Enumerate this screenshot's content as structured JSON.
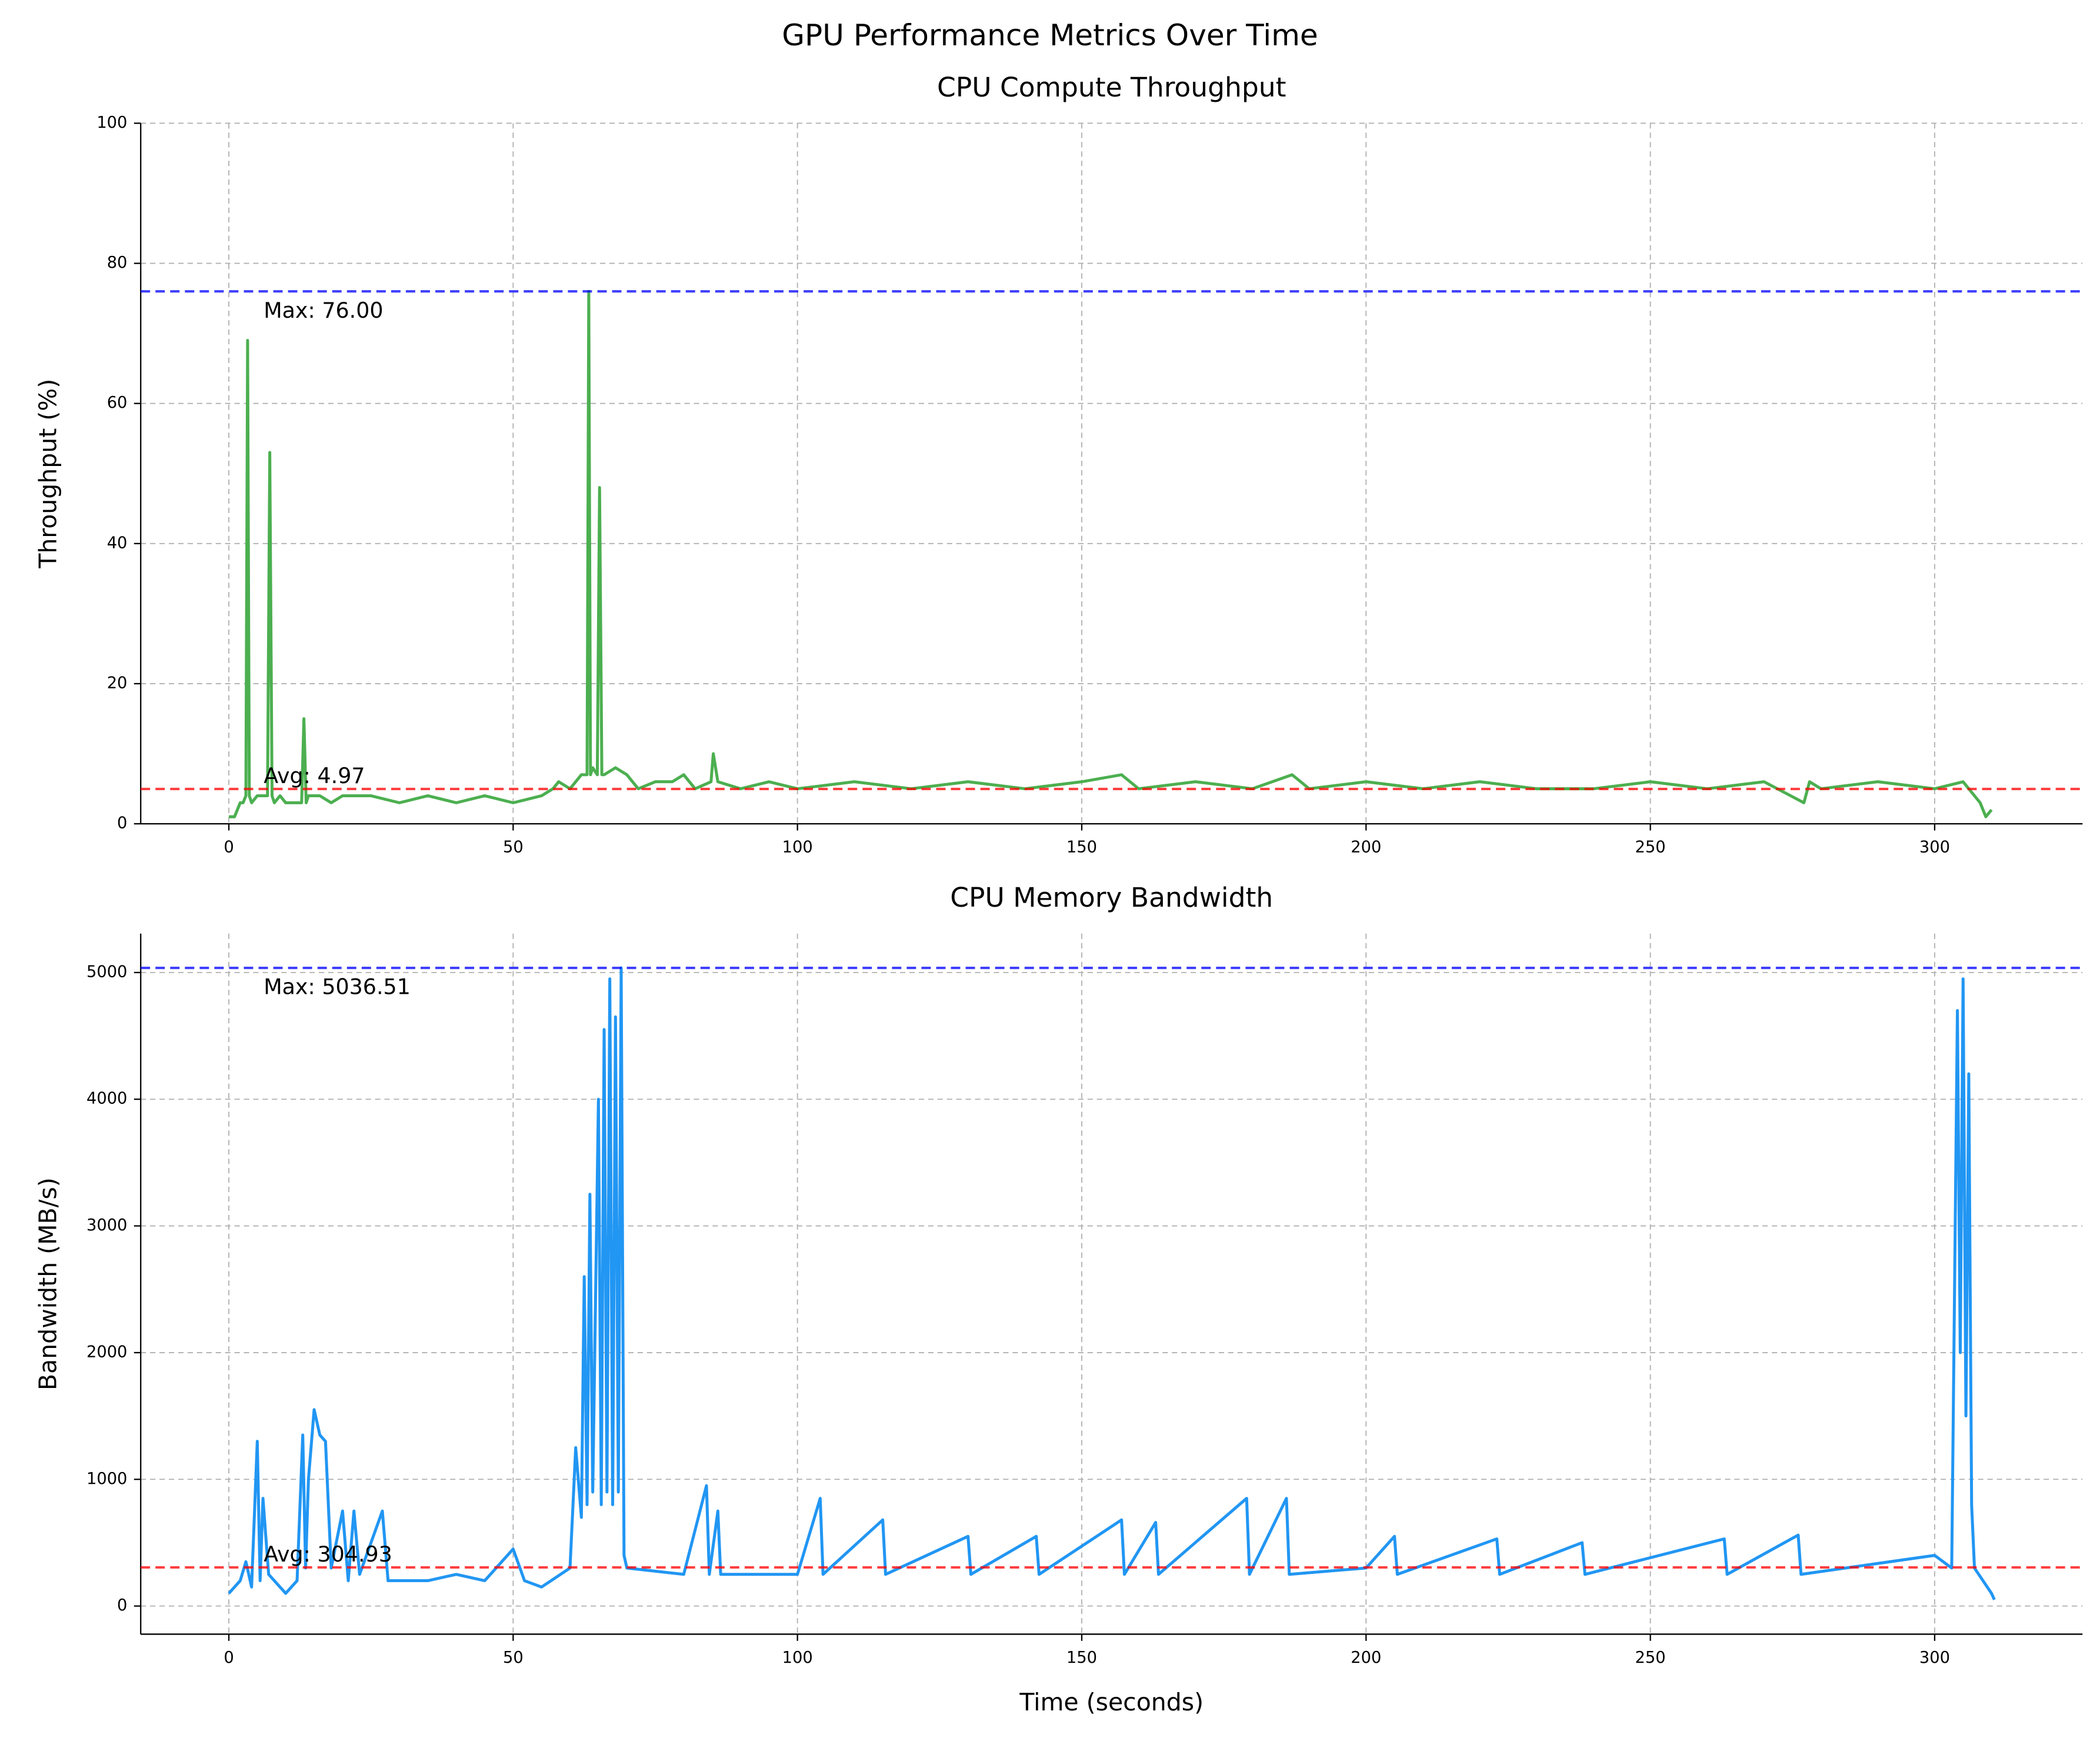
{
  "title": "GPU Performance Metrics Over Time",
  "chart_data": [
    {
      "type": "line",
      "title": "CPU Compute Throughput",
      "ylabel": "Throughput (%)",
      "color": "#4caf50",
      "grid": true,
      "xlim": [
        -15.5,
        326
      ],
      "xticks": [
        0,
        50,
        100,
        150,
        200,
        250,
        300
      ],
      "ylim": [
        0,
        100
      ],
      "yticks": [
        0,
        20,
        40,
        60,
        80,
        100
      ],
      "x": [
        0,
        1,
        2,
        2.5,
        3,
        3.3,
        3.6,
        4,
        5,
        6,
        6.8,
        7.2,
        7.6,
        8,
        9,
        10,
        12,
        12.8,
        13.2,
        13.6,
        14,
        16,
        18,
        20,
        25,
        30,
        35,
        40,
        45,
        50,
        55,
        57,
        58,
        60,
        62,
        63,
        63.3,
        63.6,
        64,
        64.8,
        65.2,
        65.6,
        66,
        68,
        70,
        72,
        75,
        78,
        80,
        82,
        84.8,
        85.2,
        86,
        90,
        95,
        100,
        110,
        120,
        130,
        140,
        150,
        157,
        160,
        170,
        180,
        187,
        190,
        200,
        210,
        220,
        230,
        240,
        250,
        260,
        270,
        277,
        278,
        280,
        290,
        300,
        305,
        307,
        308,
        309,
        310
      ],
      "values": [
        1,
        1,
        3,
        3,
        4,
        69,
        4,
        3,
        4,
        4,
        4,
        53,
        4,
        3,
        4,
        3,
        3,
        3,
        15,
        3,
        4,
        4,
        3,
        4,
        4,
        3,
        4,
        3,
        4,
        3,
        4,
        5,
        6,
        5,
        7,
        7,
        76,
        7,
        8,
        7,
        48,
        7,
        7,
        8,
        7,
        5,
        6,
        6,
        7,
        5,
        6,
        10,
        6,
        5,
        6,
        5,
        6,
        5,
        6,
        5,
        6,
        7,
        5,
        6,
        5,
        7,
        5,
        6,
        5,
        6,
        5,
        5,
        6,
        5,
        6,
        3,
        6,
        5,
        6,
        5,
        6,
        4,
        3,
        1,
        2
      ],
      "hlines": [
        {
          "value": 76,
          "label": "Max: 76.00",
          "color": "#0000ff"
        },
        {
          "value": 4.97,
          "label": "Avg: 4.97",
          "color": "#ff0000"
        }
      ]
    },
    {
      "type": "line",
      "title": "CPU Memory Bandwidth",
      "xlabel": "Time (seconds)",
      "ylabel": "Bandwidth (MB/s)",
      "color": "#2196f3",
      "grid": true,
      "xlim": [
        -15.5,
        326
      ],
      "xticks": [
        0,
        50,
        100,
        150,
        200,
        250,
        300
      ],
      "ylim": [
        -222,
        5307
      ],
      "yticks": [
        0,
        1000,
        2000,
        3000,
        4000,
        5000
      ],
      "x": [
        0,
        2,
        3,
        4,
        5,
        5.5,
        6,
        7,
        10,
        12,
        13,
        13.5,
        14,
        15,
        16,
        17,
        18,
        20,
        21,
        22,
        23,
        27,
        28,
        35,
        40,
        45,
        50,
        52,
        55,
        60,
        61,
        62,
        62.5,
        63,
        63.5,
        64,
        65,
        65.5,
        66,
        66.5,
        67,
        67.5,
        68,
        68.5,
        69,
        69.5,
        70,
        80,
        84,
        84.5,
        86,
        86.5,
        100,
        104,
        104.5,
        115,
        115.5,
        130,
        130.5,
        142,
        142.5,
        157,
        157.5,
        163,
        163.5,
        179,
        179.5,
        186,
        186.5,
        200,
        205,
        205.5,
        223,
        223.5,
        238,
        238.5,
        263,
        263.5,
        276,
        276.5,
        300,
        303,
        304,
        304.5,
        305,
        305.5,
        306,
        306.5,
        307,
        310,
        310.5
      ],
      "values": [
        100,
        200,
        350,
        150,
        1300,
        200,
        850,
        250,
        100,
        200,
        1350,
        300,
        1000,
        1550,
        1350,
        1300,
        300,
        750,
        200,
        750,
        250,
        750,
        200,
        200,
        250,
        200,
        450,
        200,
        150,
        300,
        1250,
        700,
        2600,
        800,
        3250,
        900,
        4000,
        800,
        4550,
        900,
        4950,
        800,
        4650,
        900,
        5036.51,
        400,
        300,
        250,
        950,
        250,
        750,
        250,
        250,
        850,
        250,
        680,
        250,
        550,
        250,
        550,
        250,
        680,
        250,
        660,
        250,
        850,
        250,
        850,
        250,
        300,
        550,
        250,
        530,
        250,
        500,
        250,
        530,
        250,
        560,
        250,
        400,
        300,
        4700,
        2000,
        4950,
        1500,
        4200,
        800,
        300,
        100,
        50
      ],
      "hlines": [
        {
          "value": 5036.51,
          "label": "Max: 5036.51",
          "color": "#0000ff"
        },
        {
          "value": 304.93,
          "label": "Avg: 304.93",
          "color": "#ff0000"
        }
      ]
    }
  ]
}
